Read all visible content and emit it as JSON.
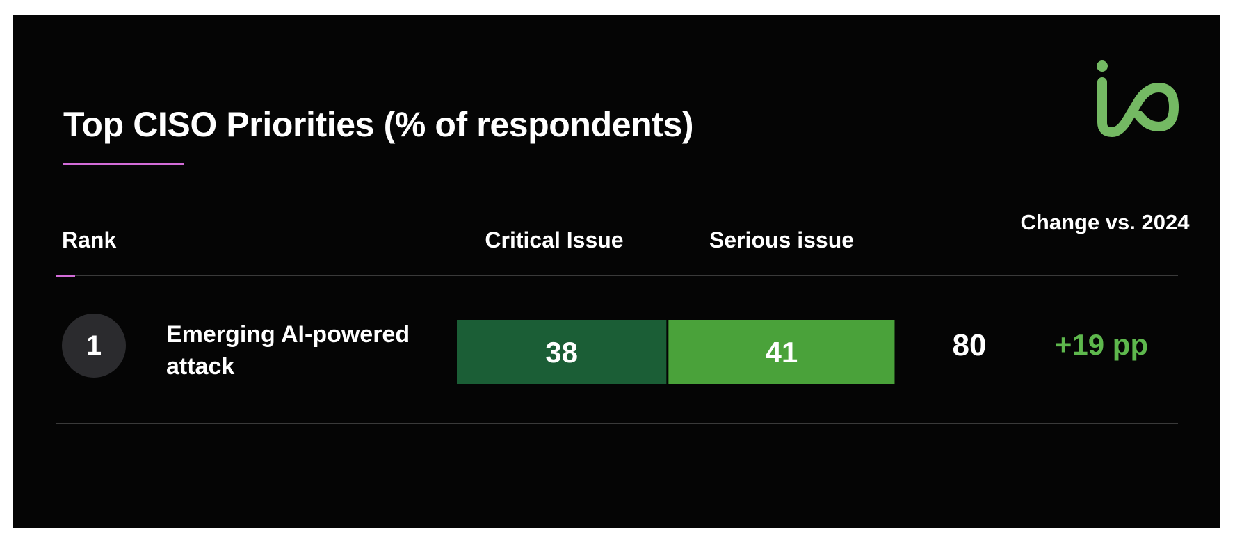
{
  "title": "Top CISO Priorities (% of respondents)",
  "logo": {
    "icon": "io-logo-icon",
    "color": "#74b963"
  },
  "colors": {
    "critical": "#1b5e36",
    "serious": "#4aa23a",
    "change": "#5eb84d",
    "accent": "#d26cd8"
  },
  "chart_data": {
    "type": "bar",
    "stacked": true,
    "orientation": "horizontal",
    "columns": {
      "rank": "Rank",
      "critical": "Critical Issue",
      "serious": "Serious issue",
      "change": "Change vs. 2024"
    },
    "categories": [
      "Emerging AI-powered attack"
    ],
    "series": [
      {
        "name": "Critical Issue",
        "values": [
          38
        ]
      },
      {
        "name": "Serious issue",
        "values": [
          41
        ]
      }
    ],
    "rows": [
      {
        "rank": "1",
        "label": "Emerging AI-powered attack",
        "critical": 38,
        "serious": 41,
        "total": "80",
        "change": "+19 pp"
      }
    ]
  }
}
